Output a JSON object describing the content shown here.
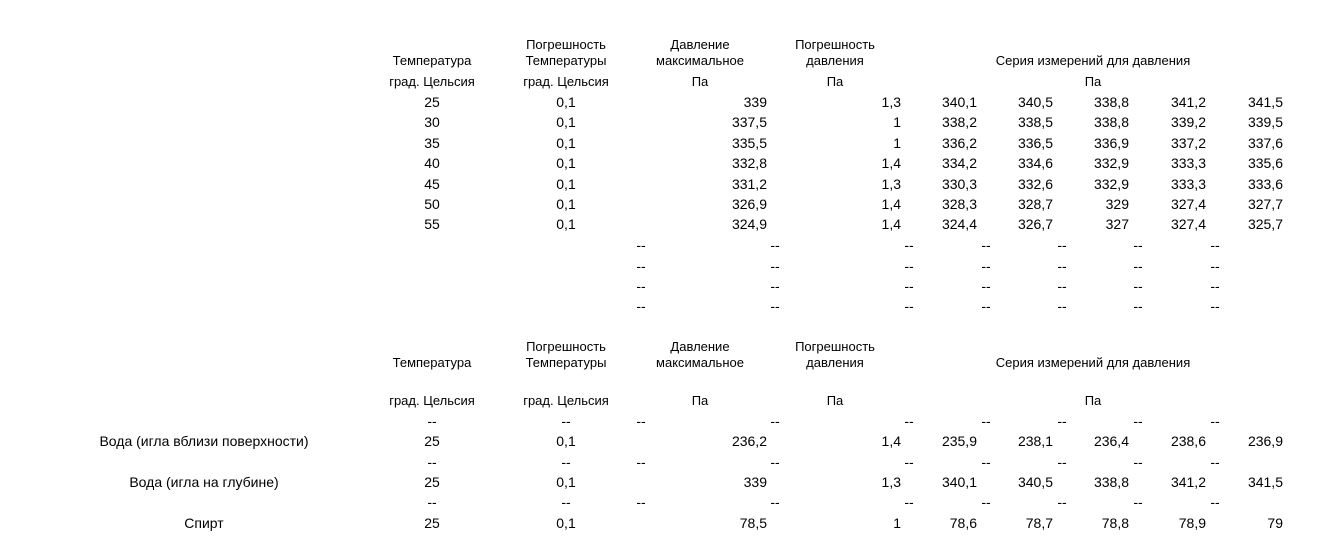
{
  "headers": {
    "temperature": "Температура",
    "temp_unit": "град. Цельсия",
    "temp_error_1": "Погрешность",
    "temp_error_2": "Температуры",
    "temp_error_unit": "град. Цельсия",
    "pressure_max_1": "Давление",
    "pressure_max_2": "максимальное",
    "pressure_unit": "Па",
    "pressure_error_1": "Погрешность",
    "pressure_error_2": "давления",
    "pressure_error_unit": "Па",
    "series": "Серия измерений для давления",
    "series_unit": "Па"
  },
  "dash": "--",
  "table1": {
    "rows": [
      {
        "t": "25",
        "te": "0,1",
        "p": "339",
        "pe": "1,3",
        "s": [
          "340,1",
          "340,5",
          "338,8",
          "341,2",
          "341,5"
        ]
      },
      {
        "t": "30",
        "te": "0,1",
        "p": "337,5",
        "pe": "1",
        "s": [
          "338,2",
          "338,5",
          "338,8",
          "339,2",
          "339,5"
        ]
      },
      {
        "t": "35",
        "te": "0,1",
        "p": "335,5",
        "pe": "1",
        "s": [
          "336,2",
          "336,5",
          "336,9",
          "337,2",
          "337,6"
        ]
      },
      {
        "t": "40",
        "te": "0,1",
        "p": "332,8",
        "pe": "1,4",
        "s": [
          "334,2",
          "334,6",
          "332,9",
          "333,3",
          "335,6"
        ]
      },
      {
        "t": "45",
        "te": "0,1",
        "p": "331,2",
        "pe": "1,3",
        "s": [
          "330,3",
          "332,6",
          "332,9",
          "333,3",
          "333,6"
        ]
      },
      {
        "t": "50",
        "te": "0,1",
        "p": "326,9",
        "pe": "1,4",
        "s": [
          "328,3",
          "328,7",
          "329",
          "327,4",
          "327,7"
        ]
      },
      {
        "t": "55",
        "te": "0,1",
        "p": "324,9",
        "pe": "1,4",
        "s": [
          "324,4",
          "326,7",
          "327",
          "327,4",
          "325,7"
        ]
      }
    ]
  },
  "table2": {
    "rows": [
      {
        "label": "Вода (игла вблизи поверхности)",
        "t": "25",
        "te": "0,1",
        "p": "236,2",
        "pe": "1,4",
        "s": [
          "235,9",
          "238,1",
          "236,4",
          "238,6",
          "236,9"
        ]
      },
      {
        "label": "Вода (игла на глубине)",
        "t": "25",
        "te": "0,1",
        "p": "339",
        "pe": "1,3",
        "s": [
          "340,1",
          "340,5",
          "338,8",
          "341,2",
          "341,5"
        ]
      },
      {
        "label": "Спирт",
        "t": "25",
        "te": "0,1",
        "p": "78,5",
        "pe": "1",
        "s": [
          "78,6",
          "78,7",
          "78,8",
          "78,9",
          "79"
        ]
      }
    ]
  }
}
